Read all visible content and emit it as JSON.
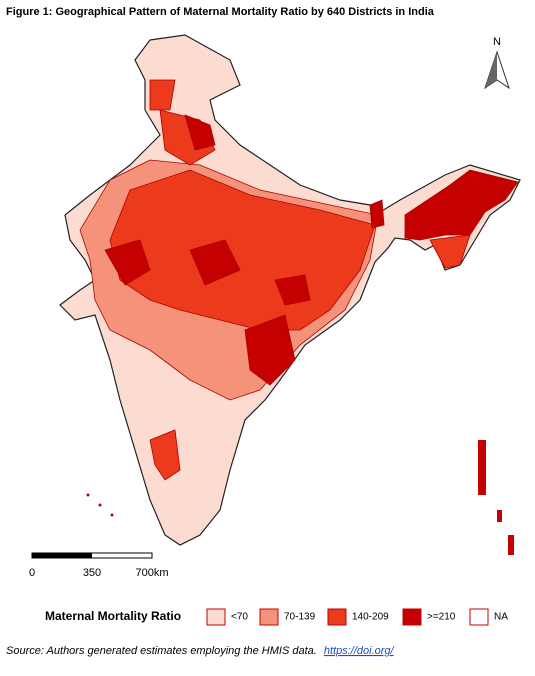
{
  "title": "Figure 1: Geographical Pattern of Maternal Mortality Ratio by 640 Districts in India",
  "north_label": "N",
  "scale_bar": {
    "labels": [
      "0",
      "350",
      "700km"
    ]
  },
  "legend": {
    "title": "Maternal Mortality Ratio",
    "items": [
      {
        "label": "<70",
        "color": "#fcdcd0"
      },
      {
        "label": "70-139",
        "color": "#f4937a"
      },
      {
        "label": "140-209",
        "color": "#ec3a1c"
      },
      {
        "label": ">=210",
        "color": "#c40000"
      },
      {
        "label": "NA",
        "color": "#ffffff"
      }
    ]
  },
  "source": {
    "text": "Source: Authors generated estimates employing the HMIS data.",
    "link": "https://doi.org/"
  }
}
